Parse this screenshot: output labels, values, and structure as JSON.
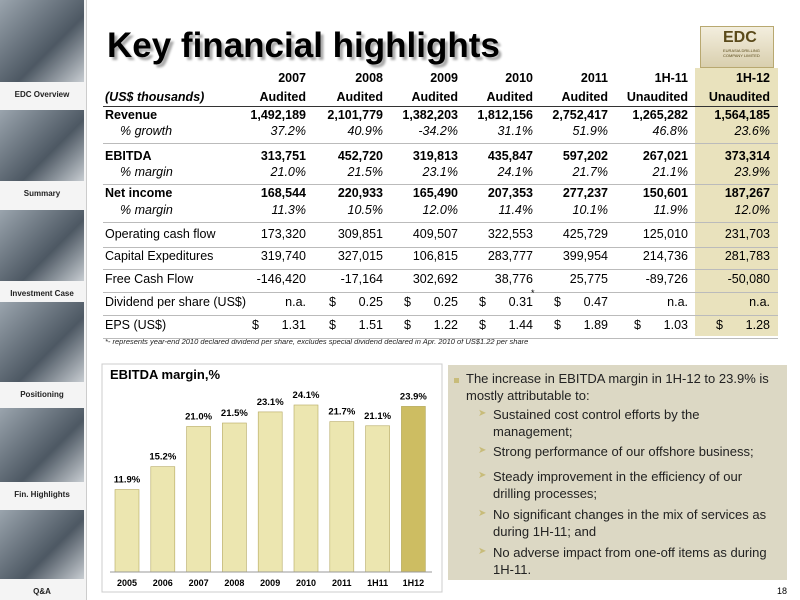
{
  "sidebar": [
    "EDC Overview",
    "Summary",
    "Investment Case",
    "Positioning",
    "Fin. Highlights",
    "Q&A"
  ],
  "header": {
    "title": "Key financial highlights",
    "logo": "EDC",
    "logo_sub": "EURASIA DRILLING COMPANY LIMITED"
  },
  "table": {
    "periods": [
      "2007",
      "2008",
      "2009",
      "2010",
      "2011",
      "1H-11",
      "1H-12"
    ],
    "unit": "(US$ thousands)",
    "status": [
      "Audited",
      "Audited",
      "Audited",
      "Audited",
      "Audited",
      "Unaudited",
      "Unaudited"
    ],
    "rows": [
      {
        "label": "Revenue",
        "style": "main",
        "cells": [
          "1,492,189",
          "2,101,779",
          "1,382,203",
          "1,812,156",
          "2,752,417",
          "1,265,282",
          "1,564,185"
        ]
      },
      {
        "label": "% growth",
        "style": "sub",
        "cells": [
          "37.2%",
          "40.9%",
          "-34.2%",
          "31.1%",
          "51.9%",
          "46.8%",
          "23.6%"
        ]
      },
      {
        "label": "EBITDA",
        "style": "main",
        "cells": [
          "313,751",
          "452,720",
          "319,813",
          "435,847",
          "597,202",
          "267,021",
          "373,314"
        ]
      },
      {
        "label": "% margin",
        "style": "sub",
        "cells": [
          "21.0%",
          "21.5%",
          "23.1%",
          "24.1%",
          "21.7%",
          "21.1%",
          "23.9%"
        ]
      },
      {
        "label": "Net income",
        "style": "main",
        "cells": [
          "168,544",
          "220,933",
          "165,490",
          "207,353",
          "277,237",
          "150,601",
          "187,267"
        ]
      },
      {
        "label": "% margin",
        "style": "sub",
        "cells": [
          "11.3%",
          "10.5%",
          "12.0%",
          "11.4%",
          "10.1%",
          "11.9%",
          "12.0%"
        ]
      },
      {
        "label": "Operating cash flow",
        "style": "plain",
        "cells": [
          "173,320",
          "309,851",
          "409,507",
          "322,553",
          "425,729",
          "125,010",
          "231,703"
        ]
      },
      {
        "label": "Capital Expeditures",
        "style": "plain",
        "cells": [
          "319,740",
          "327,015",
          "106,815",
          "283,777",
          "399,954",
          "214,736",
          "281,783"
        ]
      },
      {
        "label": "Free Cash Flow",
        "style": "plain",
        "cells": [
          "-146,420",
          "-17,164",
          "302,692",
          "38,776",
          "25,775",
          "-89,726",
          "-50,080"
        ]
      },
      {
        "label": "Dividend per share (US$)",
        "style": "plain",
        "cells": [
          "n.a.",
          {
            "currency": "$",
            "value": "0.25"
          },
          {
            "currency": "$",
            "value": "0.25"
          },
          {
            "currency": "$",
            "value": "0.31",
            "note": "*"
          },
          {
            "currency": "$",
            "value": "0.47"
          },
          "n.a.",
          "n.a."
        ]
      },
      {
        "label": "EPS (US$)",
        "style": "plain",
        "cells": [
          {
            "currency": "$",
            "value": "1.31"
          },
          {
            "currency": "$",
            "value": "1.51"
          },
          {
            "currency": "$",
            "value": "1.22"
          },
          {
            "currency": "$",
            "value": "1.44"
          },
          {
            "currency": "$",
            "value": "1.89"
          },
          {
            "currency": "$",
            "value": "1.03"
          },
          {
            "currency": "$",
            "value": "1.28"
          }
        ]
      }
    ],
    "footnote": "*- represents year-end 2010 declared dividend per share, excludes special dividend declared in Apr. 2010 of US$1.22 per share"
  },
  "chart_data": {
    "type": "bar",
    "title": "EBITDA margin,%",
    "categories": [
      "2005",
      "2006",
      "2007",
      "2008",
      "2009",
      "2010",
      "2011",
      "1H11",
      "1H12"
    ],
    "values": [
      11.9,
      15.2,
      21.0,
      21.5,
      23.1,
      24.1,
      21.7,
      21.1,
      23.9
    ],
    "value_labels": [
      "11.9%",
      "15.2%",
      "21.0%",
      "21.5%",
      "23.1%",
      "24.1%",
      "21.7%",
      "21.1%",
      "23.9%"
    ],
    "color": "#ece6b0",
    "highlight_color": "#cdbd62"
  },
  "bullets": {
    "main": "The increase in EBITDA margin in 1H-12 to 23.9% is mostly attributable to:",
    "items": [
      "Sustained cost control efforts by the management;",
      "Strong performance of our offshore business;",
      "Steady improvement in the efficiency of our drilling processes;",
      "No significant changes in the mix of services as during 1H-11; and",
      "No adverse impact from one-off items as during 1H-11."
    ]
  },
  "page_number": "18"
}
